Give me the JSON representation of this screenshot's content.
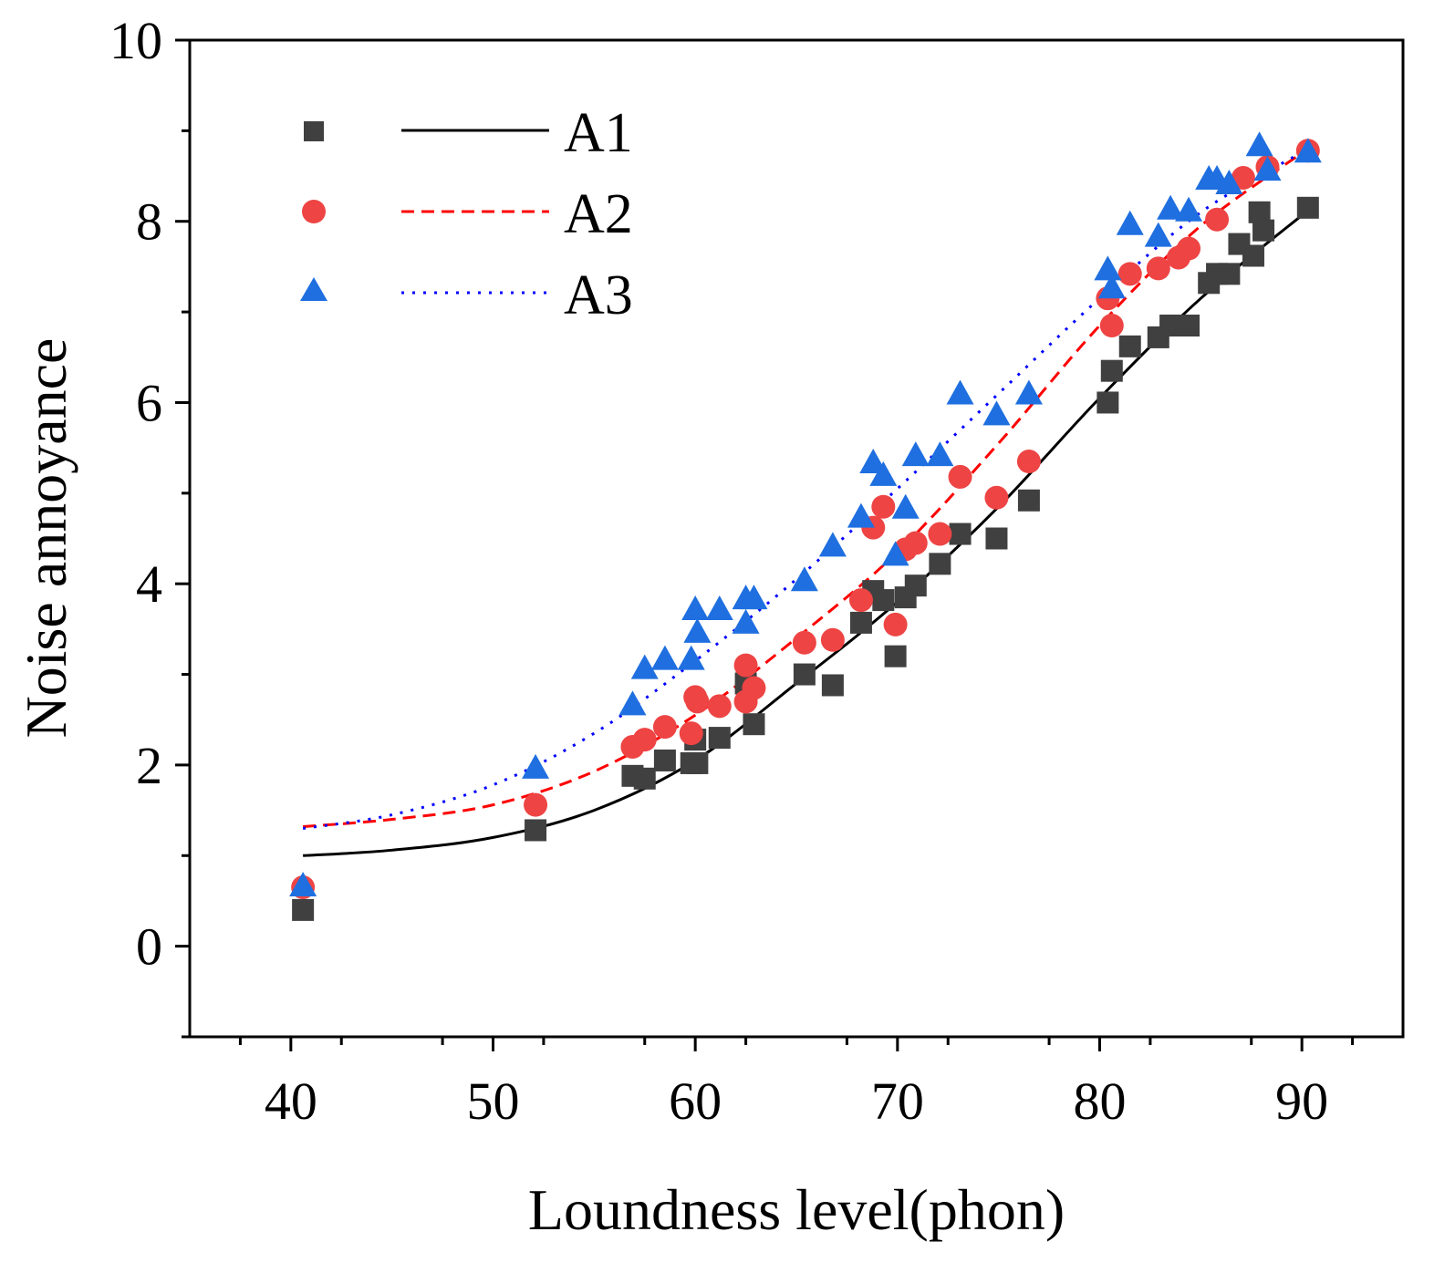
{
  "chart_data": {
    "type": "scatter",
    "title": "",
    "xlabel": "Loundness level(phon)",
    "ylabel": "Noise annoyance",
    "xlim": [
      35,
      95
    ],
    "ylim": [
      -1,
      10
    ],
    "xticks": [
      40,
      50,
      60,
      70,
      80,
      90
    ],
    "xtick_labels": [
      "40",
      "50",
      "60",
      "70",
      "80",
      "90"
    ],
    "yticks": [
      0,
      2,
      4,
      6,
      8,
      10
    ],
    "ytick_labels": [
      "0",
      "2",
      "4",
      "6",
      "8",
      "10"
    ],
    "grid": false,
    "legend_position": "top-left",
    "series": [
      {
        "name": "A1",
        "color": "#404040",
        "marker": "square",
        "line_style": "solid",
        "line_color": "#000000",
        "points": [
          [
            40.6,
            0.4
          ],
          [
            52.1,
            1.28
          ],
          [
            56.9,
            1.88
          ],
          [
            57.5,
            1.85
          ],
          [
            58.5,
            2.05
          ],
          [
            59.8,
            2.02
          ],
          [
            60.1,
            2.02
          ],
          [
            60.0,
            2.28
          ],
          [
            61.2,
            2.3
          ],
          [
            62.5,
            2.9
          ],
          [
            62.9,
            2.45
          ],
          [
            65.4,
            3.0
          ],
          [
            66.8,
            2.88
          ],
          [
            68.2,
            3.57
          ],
          [
            68.8,
            3.92
          ],
          [
            69.3,
            3.82
          ],
          [
            69.9,
            3.2
          ],
          [
            70.4,
            3.85
          ],
          [
            70.9,
            3.98
          ],
          [
            72.1,
            4.22
          ],
          [
            73.1,
            4.55
          ],
          [
            74.9,
            4.5
          ],
          [
            76.5,
            4.92
          ],
          [
            80.4,
            6.0
          ],
          [
            80.6,
            6.35
          ],
          [
            81.5,
            6.62
          ],
          [
            82.9,
            6.72
          ],
          [
            83.5,
            6.85
          ],
          [
            84.4,
            6.85
          ],
          [
            85.4,
            7.32
          ],
          [
            85.8,
            7.42
          ],
          [
            86.4,
            7.42
          ],
          [
            86.9,
            7.75
          ],
          [
            87.6,
            7.62
          ],
          [
            87.9,
            8.1
          ],
          [
            88.1,
            7.9
          ],
          [
            90.3,
            8.15
          ]
        ],
        "fit_curve": [
          [
            40.6,
            1.0
          ],
          [
            45,
            1.06
          ],
          [
            50,
            1.2
          ],
          [
            55,
            1.5
          ],
          [
            60,
            2.05
          ],
          [
            65,
            2.9
          ],
          [
            70,
            3.8
          ],
          [
            75,
            4.85
          ],
          [
            80,
            6.05
          ],
          [
            85,
            7.15
          ],
          [
            90.3,
            8.12
          ]
        ]
      },
      {
        "name": "A2",
        "color": "#ee4444",
        "marker": "circle",
        "line_style": "dashed",
        "line_color": "#ff0000",
        "points": [
          [
            40.6,
            0.65
          ],
          [
            52.1,
            1.56
          ],
          [
            56.9,
            2.2
          ],
          [
            57.5,
            2.28
          ],
          [
            58.5,
            2.42
          ],
          [
            59.8,
            2.35
          ],
          [
            60.0,
            2.75
          ],
          [
            60.1,
            2.7
          ],
          [
            61.2,
            2.65
          ],
          [
            62.5,
            2.7
          ],
          [
            62.5,
            3.1
          ],
          [
            62.9,
            2.85
          ],
          [
            65.4,
            3.35
          ],
          [
            66.8,
            3.38
          ],
          [
            68.2,
            3.82
          ],
          [
            68.8,
            4.62
          ],
          [
            69.3,
            4.85
          ],
          [
            69.9,
            3.55
          ],
          [
            70.4,
            4.38
          ],
          [
            70.9,
            4.45
          ],
          [
            72.1,
            4.55
          ],
          [
            73.1,
            5.18
          ],
          [
            74.9,
            4.95
          ],
          [
            76.5,
            5.35
          ],
          [
            80.4,
            7.15
          ],
          [
            80.6,
            6.85
          ],
          [
            81.5,
            7.42
          ],
          [
            82.9,
            7.48
          ],
          [
            83.9,
            7.6
          ],
          [
            84.4,
            7.7
          ],
          [
            85.8,
            8.02
          ],
          [
            87.1,
            8.48
          ],
          [
            88.3,
            8.6
          ],
          [
            90.3,
            8.78
          ]
        ],
        "fit_curve": [
          [
            40.6,
            1.32
          ],
          [
            45,
            1.4
          ],
          [
            50,
            1.56
          ],
          [
            55,
            1.93
          ],
          [
            60,
            2.55
          ],
          [
            65,
            3.4
          ],
          [
            70,
            4.35
          ],
          [
            75,
            5.55
          ],
          [
            80,
            6.85
          ],
          [
            85,
            7.95
          ],
          [
            90.3,
            8.8
          ]
        ]
      },
      {
        "name": "A3",
        "color": "#1f6fe0",
        "marker": "triangle",
        "line_style": "dotted",
        "line_color": "#0000ff",
        "points": [
          [
            40.6,
            0.65
          ],
          [
            52.1,
            1.95
          ],
          [
            56.9,
            2.65
          ],
          [
            57.5,
            3.05
          ],
          [
            58.5,
            3.15
          ],
          [
            59.8,
            3.15
          ],
          [
            60.0,
            3.7
          ],
          [
            60.1,
            3.45
          ],
          [
            61.2,
            3.7
          ],
          [
            62.5,
            3.55
          ],
          [
            62.5,
            3.82
          ],
          [
            62.9,
            3.82
          ],
          [
            65.4,
            4.02
          ],
          [
            66.8,
            4.4
          ],
          [
            68.2,
            4.72
          ],
          [
            68.8,
            5.32
          ],
          [
            69.3,
            5.18
          ],
          [
            69.9,
            4.3
          ],
          [
            70.4,
            4.82
          ],
          [
            70.9,
            5.4
          ],
          [
            72.1,
            5.4
          ],
          [
            73.1,
            6.08
          ],
          [
            74.9,
            5.85
          ],
          [
            76.5,
            6.08
          ],
          [
            80.4,
            7.45
          ],
          [
            80.6,
            7.25
          ],
          [
            81.5,
            7.95
          ],
          [
            82.9,
            7.82
          ],
          [
            83.5,
            8.12
          ],
          [
            84.4,
            8.1
          ],
          [
            85.4,
            8.45
          ],
          [
            85.8,
            8.45
          ],
          [
            86.4,
            8.4
          ],
          [
            87.9,
            8.82
          ],
          [
            88.3,
            8.55
          ],
          [
            90.3,
            8.75
          ]
        ],
        "fit_curve": [
          [
            40.6,
            1.3
          ],
          [
            45,
            1.45
          ],
          [
            50,
            1.78
          ],
          [
            55,
            2.35
          ],
          [
            60,
            3.15
          ],
          [
            65,
            4.05
          ],
          [
            70,
            5.05
          ],
          [
            75,
            6.1
          ],
          [
            80,
            7.15
          ],
          [
            85,
            8.1
          ],
          [
            90.3,
            8.8
          ]
        ]
      }
    ]
  }
}
